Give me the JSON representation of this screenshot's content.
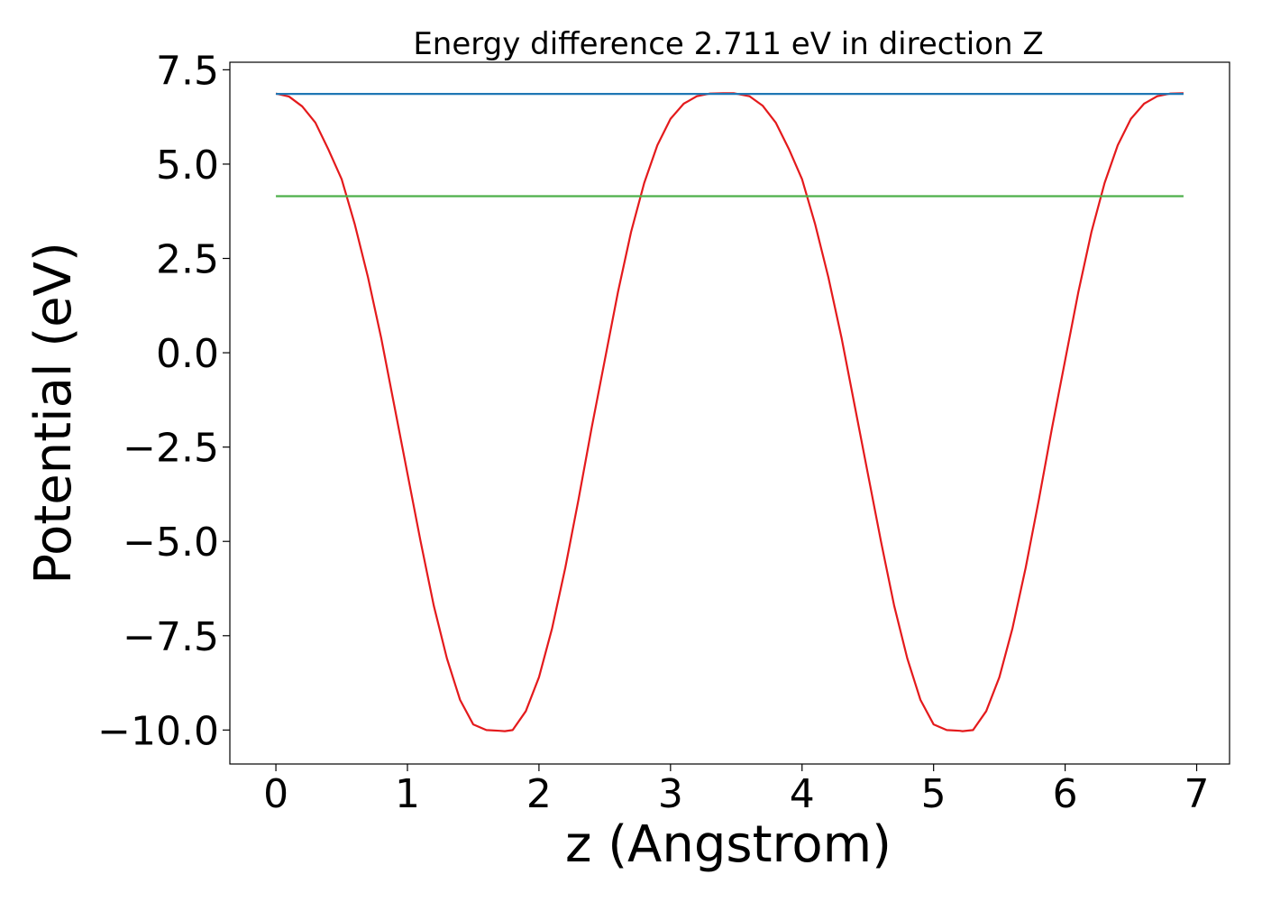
{
  "chart_data": {
    "type": "line",
    "title": "Energy difference 2.711 eV in direction Z",
    "xlabel": "z (Angstrom)",
    "ylabel": "Potential (eV)",
    "xlim": [
      -0.35,
      7.25
    ],
    "ylim": [
      -10.9,
      7.7
    ],
    "x_ticks": [
      0,
      1,
      2,
      3,
      4,
      5,
      6,
      7
    ],
    "x_tick_labels": [
      "0",
      "1",
      "2",
      "3",
      "4",
      "5",
      "6",
      "7"
    ],
    "y_ticks": [
      7.5,
      5.0,
      2.5,
      0.0,
      -2.5,
      -5.0,
      -7.5,
      -10.0
    ],
    "y_tick_labels": [
      "7.5",
      "5.0",
      "2.5",
      "0.0",
      "−2.5",
      "−5.0",
      "−7.5",
      "−10.0"
    ],
    "grid": false,
    "series": [
      {
        "type": "curve",
        "color": "#e41a1c",
        "x": [
          0.0,
          0.1,
          0.2,
          0.3,
          0.4,
          0.5,
          0.6,
          0.7,
          0.8,
          0.9,
          1.0,
          1.1,
          1.2,
          1.3,
          1.4,
          1.5,
          1.6,
          1.7,
          1.74,
          1.8,
          1.9,
          2.0,
          2.1,
          2.2,
          2.3,
          2.4,
          2.5,
          2.6,
          2.7,
          2.8,
          2.9,
          3.0,
          3.1,
          3.2,
          3.3,
          3.4,
          3.48,
          3.6,
          3.7,
          3.8,
          3.9,
          4.0,
          4.1,
          4.2,
          4.3,
          4.4,
          4.5,
          4.6,
          4.7,
          4.8,
          4.9,
          5.0,
          5.1,
          5.2,
          5.22,
          5.3,
          5.4,
          5.5,
          5.6,
          5.7,
          5.8,
          5.9,
          6.0,
          6.1,
          6.2,
          6.3,
          6.4,
          6.5,
          6.6,
          6.7,
          6.8,
          6.9
        ],
        "y": [
          6.87,
          6.79,
          6.53,
          6.1,
          5.38,
          4.6,
          3.4,
          2.0,
          0.4,
          -1.4,
          -3.2,
          -5.0,
          -6.7,
          -8.1,
          -9.2,
          -9.85,
          -10.0,
          -10.02,
          -10.03,
          -10.0,
          -9.5,
          -8.6,
          -7.3,
          -5.7,
          -3.9,
          -2.0,
          -0.2,
          1.6,
          3.2,
          4.5,
          5.5,
          6.2,
          6.6,
          6.8,
          6.87,
          6.88,
          6.88,
          6.8,
          6.55,
          6.1,
          5.4,
          4.6,
          3.4,
          2.0,
          0.4,
          -1.4,
          -3.2,
          -5.0,
          -6.7,
          -8.1,
          -9.2,
          -9.85,
          -10.0,
          -10.02,
          -10.03,
          -10.0,
          -9.5,
          -8.6,
          -7.3,
          -5.7,
          -3.9,
          -2.0,
          -0.2,
          1.6,
          3.2,
          4.5,
          5.5,
          6.2,
          6.6,
          6.8,
          6.87,
          6.88
        ]
      },
      {
        "type": "hline",
        "color": "#1f77b4",
        "x": [
          0.0,
          6.9
        ],
        "y": [
          6.86,
          6.86
        ]
      },
      {
        "type": "hline",
        "color": "#4daf4a",
        "x": [
          0.0,
          6.9
        ],
        "y": [
          4.15,
          4.15
        ]
      }
    ]
  }
}
